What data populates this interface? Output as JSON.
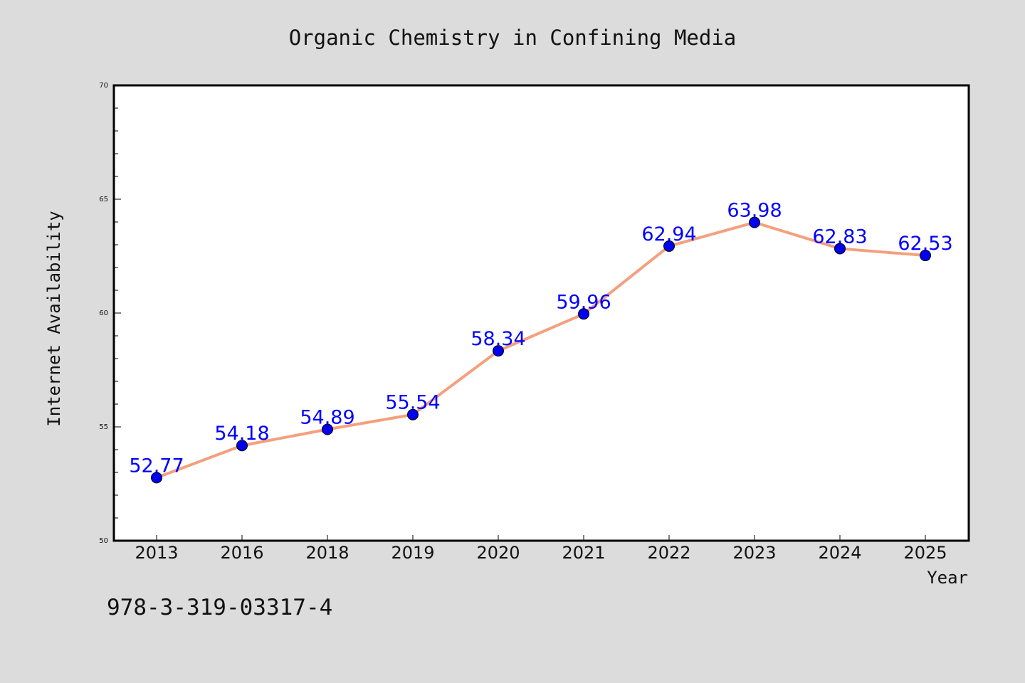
{
  "chart_data": {
    "type": "line",
    "title": "Organic Chemistry in Confining Media",
    "xlabel": "Year",
    "ylabel": "Internet Availability",
    "categories": [
      "2013",
      "2016",
      "2018",
      "2019",
      "2020",
      "2021",
      "2022",
      "2023",
      "2024",
      "2025"
    ],
    "series": [
      {
        "values": [
          52.77,
          54.18,
          54.89,
          55.54,
          58.34,
          59.96,
          62.94,
          63.98,
          62.83,
          62.53
        ],
        "data_labels": [
          "52.77",
          "54.18",
          "54.89",
          "55.54",
          "58.34",
          "59.96",
          "62.94",
          "63.98",
          "62.83",
          "62.53"
        ],
        "line_color": "#f4a07e",
        "marker_color": "#0000ee"
      }
    ],
    "ylim": [
      50,
      70
    ],
    "yticks": [
      "50",
      "55",
      "60",
      "65",
      "70"
    ],
    "grid": false,
    "label_color": "#0000ff"
  },
  "annotation": "978-3-319-03317-4",
  "colors": {
    "background": "#dcdcdc",
    "plot_area": "#ffffff",
    "axis": "#000000"
  }
}
